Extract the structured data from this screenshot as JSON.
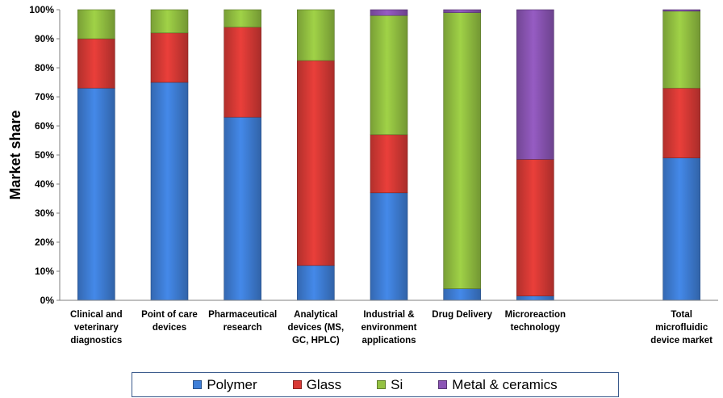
{
  "chart_data": {
    "type": "bar",
    "stacked": true,
    "ylabel": "Market share",
    "ylim": [
      0,
      100
    ],
    "yticks": [
      "0%",
      "10%",
      "20%",
      "30%",
      "40%",
      "50%",
      "60%",
      "70%",
      "80%",
      "90%",
      "100%"
    ],
    "grid": false,
    "legend_position": "bottom",
    "categories": [
      [
        "Clinical  and",
        "veterinary",
        "diagnostics"
      ],
      [
        "Point of care",
        "devices"
      ],
      [
        "Pharmaceutical",
        "research"
      ],
      [
        "Analytical",
        "devices (MS,",
        "GC, HPLC)"
      ],
      [
        "Industrial &",
        "environment",
        "applications"
      ],
      [
        "Drug Delivery"
      ],
      [
        "Microreaction",
        "technology"
      ],
      [],
      [
        "Total",
        "microfluidic",
        "device market"
      ]
    ],
    "series": [
      {
        "name": "Polymer",
        "color": "#3f7fd8",
        "values": [
          73,
          75,
          63,
          12,
          37,
          4,
          1.5,
          0,
          49
        ]
      },
      {
        "name": "Glass",
        "color": "#d93a36",
        "values": [
          17,
          17,
          31,
          70.5,
          20,
          0,
          47,
          0,
          24
        ]
      },
      {
        "name": "Si",
        "color": "#94c242",
        "values": [
          10,
          8,
          6,
          17.5,
          41,
          95,
          0,
          0,
          26.5
        ]
      },
      {
        "name": "Metal & ceramics",
        "color": "#8b55b5",
        "values": [
          0,
          0,
          0,
          0,
          2,
          1,
          51.5,
          0,
          0.5
        ]
      }
    ]
  }
}
